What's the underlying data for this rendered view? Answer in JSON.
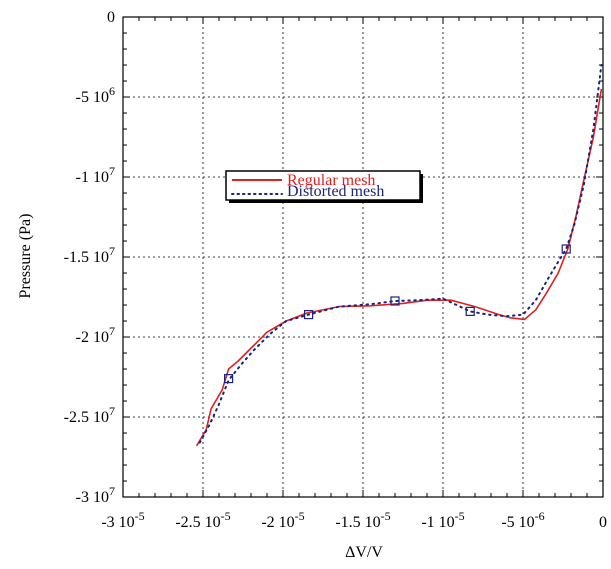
{
  "chart_data": {
    "type": "line",
    "xlabel": "ΔV/V",
    "ylabel": "Pressure (Pa)",
    "xlim": [
      -3e-05,
      0
    ],
    "ylim": [
      -30000000.0,
      0
    ],
    "grid": true,
    "legend_position": "center-left",
    "x_ticks": [
      {
        "mantissa": "-3 10",
        "exp": "-5"
      },
      {
        "mantissa": "-2.5 10",
        "exp": "-5"
      },
      {
        "mantissa": "-2 10",
        "exp": "-5"
      },
      {
        "mantissa": "-1.5 10",
        "exp": "-5"
      },
      {
        "mantissa": "-1 10",
        "exp": "-5"
      },
      {
        "mantissa": "-5 10",
        "exp": "-6"
      },
      {
        "mantissa": "0",
        "exp": ""
      }
    ],
    "y_ticks": [
      {
        "mantissa": "0",
        "exp": ""
      },
      {
        "mantissa": "-5 10",
        "exp": "6"
      },
      {
        "mantissa": "-1 10",
        "exp": "7"
      },
      {
        "mantissa": "-1.5 10",
        "exp": "7"
      },
      {
        "mantissa": "-2 10",
        "exp": "7"
      },
      {
        "mantissa": "-2.5 10",
        "exp": "7"
      },
      {
        "mantissa": "-3 10",
        "exp": "7"
      }
    ],
    "series": [
      {
        "name": "Regular mesh",
        "color": "#e02020",
        "style": "solid",
        "x": [
          -2.54e-05,
          -2.48e-05,
          -2.45e-05,
          -2.38e-05,
          -2.34e-05,
          -2.28e-05,
          -2.18e-05,
          -2.1e-05,
          -1.98e-05,
          -1.85e-05,
          -1.65e-05,
          -1.45e-05,
          -1.25e-05,
          -1.1e-05,
          -9.5e-06,
          -8e-06,
          -6.5e-06,
          -5.8e-06,
          -4.9e-06,
          -4.2e-06,
          -3.5e-06,
          -2.8e-06,
          -2.2e-06,
          -1.7e-06,
          -1.2e-06,
          -6e-07,
          -1e-07
        ],
        "y": [
          -26800000.0,
          -25800000.0,
          -24500000.0,
          -23300000.0,
          -22000000.0,
          -21500000.0,
          -20500000.0,
          -19700000.0,
          -19000000.0,
          -18500000.0,
          -18100000.0,
          -18050000.0,
          -17900000.0,
          -17700000.0,
          -17700000.0,
          -18100000.0,
          -18600000.0,
          -18800000.0,
          -18900000.0,
          -18300000.0,
          -17200000.0,
          -16000000.0,
          -14500000.0,
          -12500000.0,
          -10200000.0,
          -7500000.0,
          -4500000.0
        ]
      },
      {
        "name": "Distorted mesh",
        "color": "#1a237e",
        "style": "dotted",
        "x": [
          -2.52e-05,
          -2.46e-05,
          -2.4e-05,
          -2.34e-05,
          -2.26e-05,
          -2.18e-05,
          -2.08e-05,
          -1.98e-05,
          -1.84e-05,
          -1.65e-05,
          -1.45e-05,
          -1.3e-05,
          -1.15e-05,
          -1e-05,
          -8.3e-06,
          -7.2e-06,
          -6e-06,
          -5e-06,
          -4.2e-06,
          -3.4e-06,
          -2.8e-06,
          -2.3e-06,
          -1.8e-06,
          -1.2e-06,
          -6e-07,
          -1e-07
        ],
        "y": [
          -26600000.0,
          -25500000.0,
          -24200000.0,
          -22700000.0,
          -21700000.0,
          -20800000.0,
          -19800000.0,
          -19000000.0,
          -18600000.0,
          -18100000.0,
          -17950000.0,
          -17750000.0,
          -17700000.0,
          -17600000.0,
          -18400000.0,
          -18600000.0,
          -18700000.0,
          -18600000.0,
          -17700000.0,
          -16300000.0,
          -15300000.0,
          -14500000.0,
          -13000000.0,
          -10500000.0,
          -7000000.0,
          -3000000.0
        ]
      }
    ],
    "markers": {
      "name": "Distorted mesh markers",
      "color": "#1a237e",
      "shape": "square",
      "x": [
        -2.34e-05,
        -1.84e-05,
        -1.3e-05,
        -8.3e-06,
        -2.3e-06
      ],
      "y": [
        -22600000.0,
        -18600000.0,
        -17750000.0,
        -18400000.0,
        -14500000.0
      ]
    }
  }
}
